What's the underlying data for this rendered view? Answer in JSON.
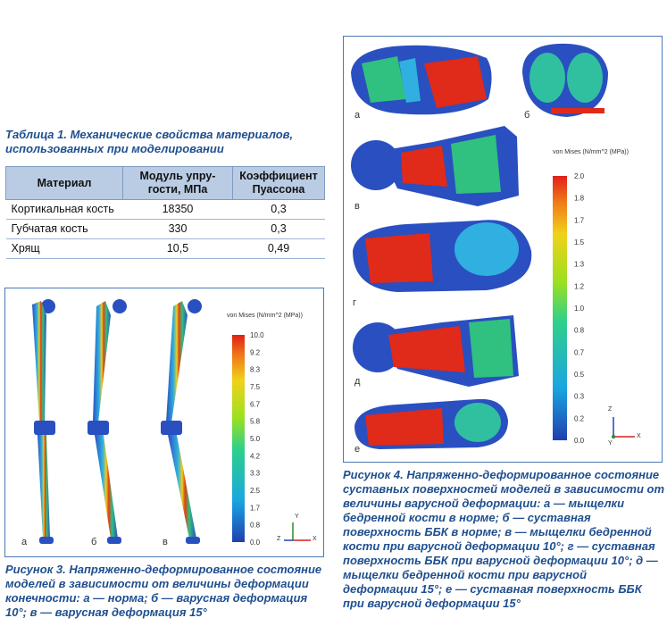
{
  "table1": {
    "caption": "Таблица 1. Механические свойства материалов, использованных при моделировании",
    "headers": [
      "Материал",
      "Модуль упру-гости, МПа",
      "Коэффициент Пуассона"
    ],
    "rows": [
      {
        "material": "Кортикальная кость",
        "modulus": "18350",
        "poisson": "0,3"
      },
      {
        "material": "Губчатая кость",
        "modulus": "330",
        "poisson": "0,3"
      },
      {
        "material": "Хрящ",
        "modulus": "10,5",
        "poisson": "0,49"
      }
    ]
  },
  "figure3": {
    "scale_title": "von Mises (N/mm^2 (MPa))",
    "scale_ticks": [
      "10.0",
      "9.2",
      "8.3",
      "7.5",
      "6.7",
      "5.8",
      "5.0",
      "4.2",
      "3.3",
      "2.5",
      "1.7",
      "0.8",
      "0.0"
    ],
    "panel_labels": [
      "а",
      "б",
      "в"
    ],
    "axis_labels": {
      "y": "Y",
      "z": "Z",
      "x": "X"
    },
    "caption": "Рисунок 3. Напряженно-деформированное состояние моделей в зависимости от величины деформации конечности: а — норма; б — варусная деформация 10°; в — варусная деформация 15°"
  },
  "figure4": {
    "scale_title": "von Mises (N/mm^2 (MPa))",
    "scale_ticks": [
      "2.0",
      "1.8",
      "1.7",
      "1.5",
      "1.3",
      "1.2",
      "1.0",
      "0.8",
      "0.7",
      "0.5",
      "0.3",
      "0.2",
      "0.0"
    ],
    "panel_labels": [
      "а",
      "б",
      "в",
      "г",
      "д",
      "е"
    ],
    "axis_labels": {
      "z": "Z",
      "y": "Y",
      "x": "X"
    },
    "caption": "Рисунок 4. Напряженно-деформированное состояние суставных поверхностей моделей в зависимости от величины варусной деформации: а — мыщелки бедренной кости в норме; б — суставная поверхность ББК в норме; в — мыщелки бедренной кости при варусной деформации 10°; г — суставная поверхность ББК при варусной деформации 10°; д — мыщелки бедренной кости при варусной деформации 15°; е — суставная поверхность ББК при варусной деформации 15°"
  },
  "colors": {
    "accent": "#1f4f8f",
    "frame": "#4a78b5",
    "table_header": "#b9cce4"
  }
}
